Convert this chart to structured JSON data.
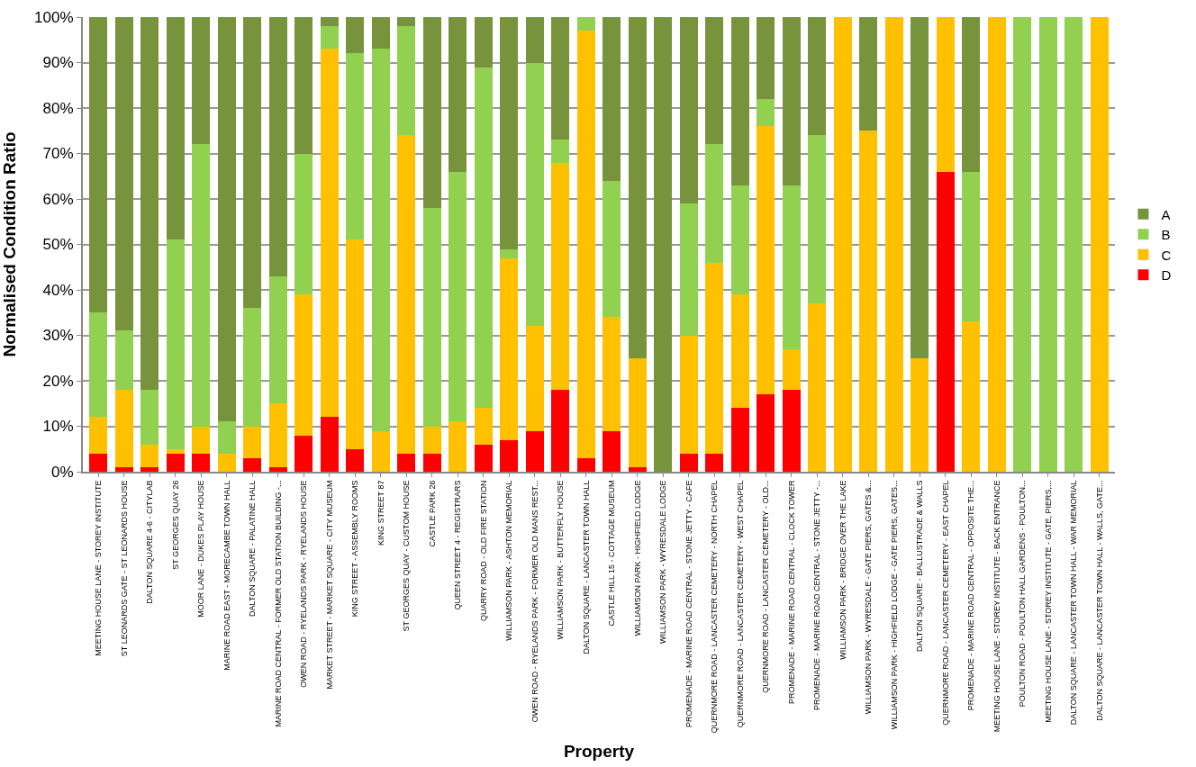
{
  "chart_data": {
    "type": "bar",
    "stacked": true,
    "xlabel": "Property",
    "ylabel": "Normalised Condition Ratio",
    "categories": [
      "MEETING HOUSE LANE - STOREY INSTITUTE",
      "ST LEONARDS GATE - ST LEONARDS HOUSE",
      "DALTON SQUARE 4-6 - CITYLAB",
      "ST GEORGES QUAY 26",
      "MOOR LANE - DUKES PLAY HOUSE",
      "MARINE ROAD EAST - MORECAMBE TOWN HALL",
      "DALTON SQUARE - PALATINE HALL",
      "MARINE ROAD CENTRAL - FORMER OLD STATION BUILDING -...",
      "OWEN ROAD - RYELANDS PARK - RYELANDS HOUSE",
      "MARKET STREET - MARKET SQUARE - CITY MUSEUM",
      "KING STREET - ASSEMBLY ROOMS",
      "KING STREET 87",
      "ST GEORGES QUAY - CUSTOM HOUSE",
      "CASTLE PARK 26",
      "QUEEN STREET 4 - REGISTRARS",
      "QUARRY ROAD - OLD FIRE STATION",
      "WILLIAMSON PARK - ASHTON MEMORIAL",
      "OWEN ROAD - RYELANDS PARK - FORMER OLD MANS REST...",
      "WILLIAMSON PARK - BUTTERFLY HOUSE",
      "DALTON SQUARE - LANCASTER TOWN HALL",
      "CASTLE HILL 15 - COTTAGE MUSEUM",
      "WILLIAMSON PARK - HIGHFIELD LODGE",
      "WILLIAMSON PARK - WYRESDALE LODGE",
      "PROMENADE - MARINE ROAD CENTRAL - STONE JETTY - CAFE",
      "QUERNMORE ROAD - LANCASTER CEMETERY - NORTH CHAPEL",
      "QUERNMORE ROAD - LANCASTER CEMETERY - WEST CHAPEL",
      "QUERNMORE ROAD - LANCASTER CEMETERY - OLD...",
      "PROMENADE - MARINE ROAD CENTRAL - CLOCK TOWER",
      "PROMENADE - MARINE ROAD CENTRAL - STONE JETTY -...",
      "WILLIAMSON PARK - BRIDGE OVER THE LAKE",
      "WILLIAMSON PARK - WYRESDALE - GATE PIERS, GATES &...",
      "WILLIAMSON PARK - HIGHFIELD LODGE - GATE PIERS, GATES...",
      "DALTON SQUARE - BALLUSTRADE & WALLS",
      "QUERNMORE ROAD - LANCASTER CEMETERY - EAST CHAPEL",
      "PROMENADE - MARINE ROAD CENTRAL - OPPOSITE THE...",
      "MEETING HOUSE LANE - STOREY INSTITUTE - BACK ENTRANCE",
      "POULTON ROAD - POULTON HALL GARDENS - POULTON...",
      "MEETING HOUSE LANE - STOREY INSTITUTE - GATE, PIERS,...",
      "DALTON SQUARE - LANCASTER TOWN HALL - WAR MEMORIAL",
      "DALTON SQUARE - LANCASTER TOWN HALL - WALLS, GATE..."
    ],
    "series": [
      {
        "name": "D",
        "color": "#ff0000",
        "values": [
          4,
          1,
          1,
          4,
          4,
          0,
          3,
          1,
          8,
          12,
          5,
          0,
          4,
          4,
          0,
          6,
          7,
          9,
          18,
          3,
          9,
          1,
          0,
          4,
          4,
          14,
          17,
          18,
          0,
          0,
          0,
          0,
          0,
          66,
          0,
          0,
          0,
          0,
          0,
          0
        ]
      },
      {
        "name": "C",
        "color": "#ffc000",
        "values": [
          8,
          17,
          5,
          1,
          6,
          4,
          7,
          14,
          31,
          81,
          46,
          9,
          70,
          6,
          11,
          8,
          40,
          23,
          50,
          94,
          25,
          24,
          0,
          26,
          42,
          25,
          59,
          9,
          37,
          100,
          75,
          100,
          25,
          34,
          33,
          100,
          0,
          0,
          0,
          100
        ]
      },
      {
        "name": "B",
        "color": "#92d050",
        "values": [
          23,
          13,
          12,
          46,
          62,
          7,
          26,
          28,
          31,
          5,
          41,
          84,
          24,
          48,
          55,
          75,
          2,
          58,
          5,
          3,
          30,
          0,
          0,
          29,
          26,
          24,
          6,
          36,
          37,
          0,
          0,
          0,
          0,
          0,
          33,
          0,
          100,
          100,
          100,
          0
        ]
      },
      {
        "name": "A",
        "color": "#77933c",
        "values": [
          65,
          69,
          82,
          49,
          28,
          89,
          64,
          57,
          30,
          2,
          8,
          7,
          2,
          42,
          34,
          11,
          51,
          10,
          27,
          0,
          36,
          75,
          100,
          41,
          28,
          37,
          18,
          37,
          26,
          0,
          25,
          0,
          75,
          0,
          34,
          0,
          0,
          0,
          0,
          0
        ]
      }
    ],
    "ylim": [
      0,
      100
    ],
    "yticks": [
      {
        "value": 0,
        "label": "0%"
      },
      {
        "value": 10,
        "label": "10%"
      },
      {
        "value": 20,
        "label": "20%"
      },
      {
        "value": 30,
        "label": "30%"
      },
      {
        "value": 40,
        "label": "40%"
      },
      {
        "value": 50,
        "label": "50%"
      },
      {
        "value": 60,
        "label": "60%"
      },
      {
        "value": 70,
        "label": "70%"
      },
      {
        "value": 80,
        "label": "80%"
      },
      {
        "value": 90,
        "label": "90%"
      },
      {
        "value": 100,
        "label": "100%"
      }
    ],
    "grid": "y",
    "legend": "right"
  }
}
